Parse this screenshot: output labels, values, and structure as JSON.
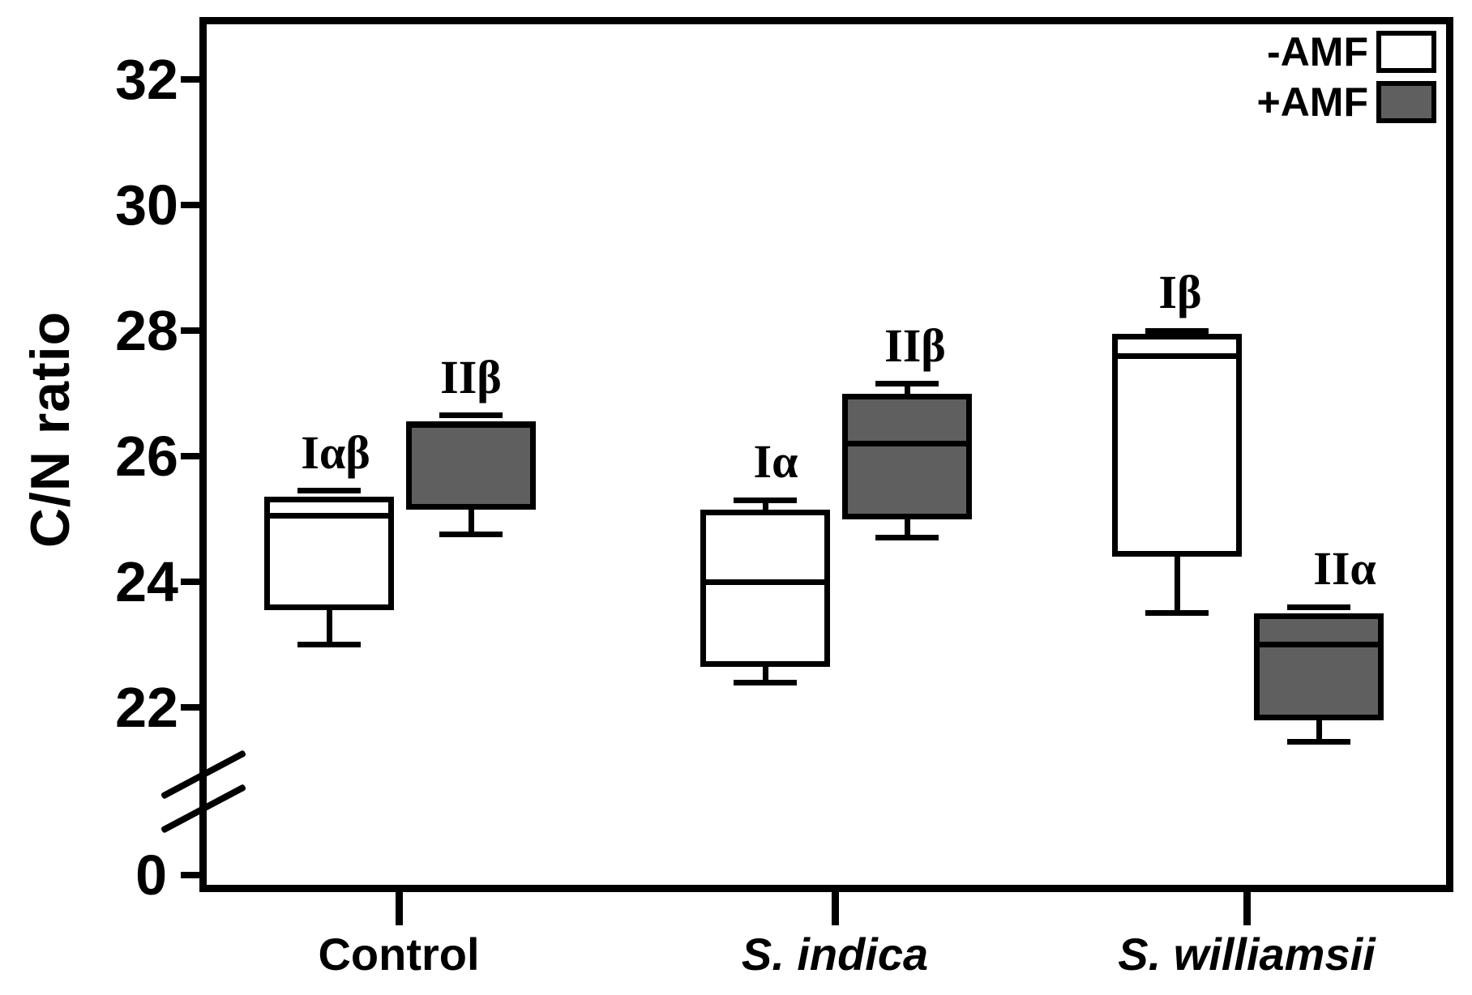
{
  "colors": {
    "ink": "#000000",
    "background": "#ffffff",
    "gray_box_fill": "#5f5f5f",
    "white_box_fill": "#ffffff"
  },
  "chart_data": {
    "type": "box",
    "title": "",
    "ylabel": "C/N ratio",
    "xlabel": "",
    "y_ticks": [
      32,
      30,
      28,
      26,
      24,
      22
    ],
    "zero_tick_label": "0",
    "axis_break_between_0_and_22": true,
    "ylim_main": [
      21,
      33
    ],
    "legend_position": "top-right",
    "grid": false,
    "categories": [
      {
        "label": "Control",
        "italic": false
      },
      {
        "label": "S. indica",
        "italic": true
      },
      {
        "label": "S. williamsii",
        "italic": true
      }
    ],
    "series": [
      {
        "name": "-AMF",
        "fill": "#ffffff",
        "boxes": [
          {
            "category": "Control",
            "sig_label": "Iαβ",
            "whisker_low": 23.0,
            "q1": 23.55,
            "median": 25.05,
            "q3": 25.35,
            "whisker_high": 25.45
          },
          {
            "category": "S. indica",
            "sig_label": "Iα",
            "whisker_low": 22.4,
            "q1": 22.65,
            "median": 24.0,
            "q3": 25.15,
            "whisker_high": 25.3
          },
          {
            "category": "S. williamsii",
            "sig_label": "Iβ",
            "whisker_low": 23.5,
            "q1": 24.4,
            "median": 27.6,
            "q3": 27.95,
            "whisker_high": 28.0
          }
        ]
      },
      {
        "name": "+AMF",
        "fill": "#5f5f5f",
        "boxes": [
          {
            "category": "Control",
            "sig_label": "IIβ",
            "whisker_low": 24.75,
            "q1": 25.15,
            "median": 26.5,
            "q3": 26.55,
            "whisker_high": 26.65
          },
          {
            "category": "S. indica",
            "sig_label": "IIβ",
            "whisker_low": 24.7,
            "q1": 25.0,
            "median": 26.2,
            "q3": 27.0,
            "whisker_high": 27.15
          },
          {
            "category": "S. williamsii",
            "sig_label": "IIα",
            "whisker_low": 21.45,
            "q1": 21.8,
            "median": 23.0,
            "q3": 23.5,
            "whisker_high": 23.6
          }
        ]
      }
    ]
  }
}
